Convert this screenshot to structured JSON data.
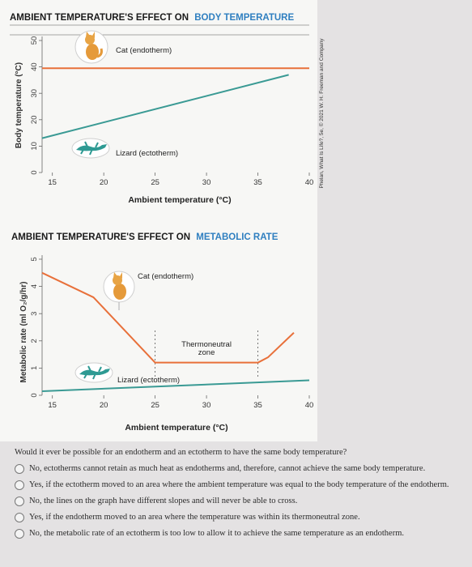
{
  "chart_data": [
    {
      "type": "line",
      "title": "AMBIENT TEMPERATURE'S EFFECT ON",
      "title_highlight": "BODY TEMPERATURE",
      "xlabel": "Ambient temperature (°C)",
      "ylabel": "Body temperature (°C)",
      "xlim": [
        14,
        40
      ],
      "ylim": [
        0,
        50
      ],
      "x_ticks": [
        "15",
        "20",
        "25",
        "30",
        "35",
        "40"
      ],
      "y_ticks": [
        "0",
        "10",
        "20",
        "30",
        "40",
        "50"
      ],
      "grid": false,
      "series": [
        {
          "name": "Cat (endotherm)",
          "color": "#e8703a",
          "x": [
            14,
            40
          ],
          "y": [
            39.5,
            39.5
          ]
        },
        {
          "name": "Lizard (ectotherm)",
          "color": "#3a9a94",
          "x": [
            14,
            38
          ],
          "y": [
            13,
            37
          ]
        }
      ]
    },
    {
      "type": "line",
      "title": "AMBIENT TEMPERATURE'S EFFECT ON",
      "title_highlight": "METABOLIC RATE",
      "xlabel": "Ambient temperature (°C)",
      "ylabel": "Metabolic rate (ml O₂/g/hr)",
      "xlim": [
        14,
        40
      ],
      "ylim": [
        0,
        5
      ],
      "x_ticks": [
        "15",
        "20",
        "25",
        "30",
        "35",
        "40"
      ],
      "y_ticks": [
        "0",
        "1",
        "2",
        "3",
        "4",
        "5"
      ],
      "grid": false,
      "annotation": [
        "Thermoneutral",
        "zone"
      ],
      "thermoneutral_zone": [
        25,
        35
      ],
      "series": [
        {
          "name": "Cat (endotherm)",
          "color": "#e8703a",
          "x": [
            14,
            19,
            25,
            35,
            36,
            38.5
          ],
          "y": [
            4.5,
            3.6,
            1.2,
            1.2,
            1.4,
            2.3
          ]
        },
        {
          "name": "Lizard (ectotherm)",
          "color": "#3a9a94",
          "x": [
            14,
            40
          ],
          "y": [
            0.15,
            0.55
          ]
        }
      ]
    }
  ],
  "credit": "Phelan, What Is Life?, 5e, © 2021 W. H. Freeman and Company",
  "question": {
    "text": "Would it ever be possible for an endotherm and an ectotherm to have the same body temperature?",
    "options": [
      "No, ectotherms cannot retain as much heat as endotherms and, therefore, cannot achieve the same body temperature.",
      "Yes, if the ectotherm moved to an area where the ambient temperature was equal to the body temperature of the endotherm.",
      "No, the lines on the graph have different slopes and will never be able to cross.",
      "Yes, if the endotherm moved to an area where the temperature was within its thermoneutral zone.",
      "No, the metabolic rate of an ectotherm is too low to allow it to achieve the same temperature as an endotherm."
    ]
  },
  "colors": {
    "title": "#1a1a1a",
    "highlight": "#2f7fc0",
    "axis": "#555555",
    "panel": "#ffffff",
    "background": "#e4e2e3"
  },
  "icons": {
    "cat": "cat-icon",
    "lizard": "lizard-icon"
  }
}
